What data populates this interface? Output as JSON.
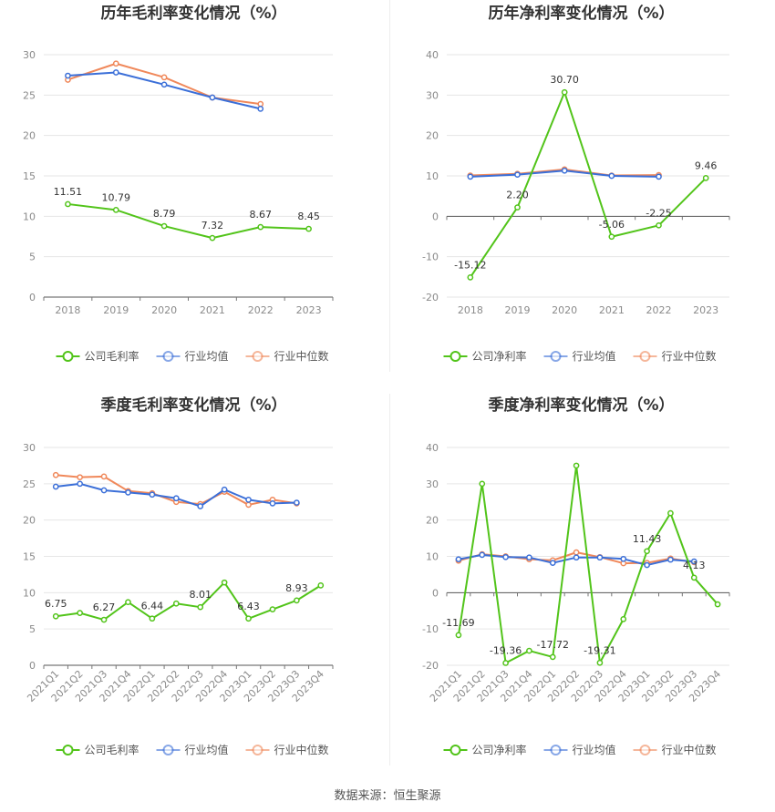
{
  "chart_data": [
    {
      "type": "line",
      "title": "历年毛利率变化情况（%）",
      "categories": [
        "2018",
        "2019",
        "2020",
        "2021",
        "2022",
        "2023"
      ],
      "ylim": [
        0,
        30
      ],
      "yticks": [
        0,
        5,
        10,
        15,
        20,
        25,
        30
      ],
      "rotate_xticks": false,
      "series": [
        {
          "name": "公司毛利率",
          "color": "#52c41a",
          "values": [
            11.51,
            10.79,
            8.79,
            7.32,
            8.67,
            8.45
          ],
          "labels": [
            "11.51",
            "10.79",
            "8.79",
            "7.32",
            "8.67",
            "8.45"
          ]
        },
        {
          "name": "行业均值",
          "color": "#3b6fd8",
          "values": [
            27.4,
            27.8,
            26.3,
            24.7,
            23.3,
            null
          ]
        },
        {
          "name": "行业中位数",
          "color": "#f0885a",
          "values": [
            26.9,
            28.9,
            27.2,
            24.7,
            23.9,
            null
          ]
        }
      ]
    },
    {
      "type": "line",
      "title": "历年净利率变化情况（%）",
      "categories": [
        "2018",
        "2019",
        "2020",
        "2021",
        "2022",
        "2023"
      ],
      "ylim": [
        -20,
        40
      ],
      "yticks": [
        -20,
        -10,
        0,
        10,
        20,
        30,
        40
      ],
      "rotate_xticks": false,
      "series": [
        {
          "name": "公司净利率",
          "color": "#52c41a",
          "values": [
            -15.12,
            2.2,
            30.7,
            -5.06,
            -2.25,
            9.46
          ],
          "labels": [
            "-15.12",
            "2.20",
            "30.70",
            "-5.06",
            "-2.25",
            "9.46"
          ]
        },
        {
          "name": "行业均值",
          "color": "#3b6fd8",
          "values": [
            9.8,
            10.3,
            11.3,
            10.0,
            9.8,
            null
          ]
        },
        {
          "name": "行业中位数",
          "color": "#f0885a",
          "values": [
            10.1,
            10.5,
            11.6,
            10.1,
            10.2,
            null
          ]
        }
      ]
    },
    {
      "type": "line",
      "title": "季度毛利率变化情况（%）",
      "categories": [
        "2021Q1",
        "2021Q2",
        "2021Q3",
        "2021Q4",
        "2022Q1",
        "2022Q2",
        "2022Q3",
        "2022Q4",
        "2023Q1",
        "2023Q2",
        "2023Q3",
        "2023Q4"
      ],
      "ylim": [
        0,
        30
      ],
      "yticks": [
        0,
        5,
        10,
        15,
        20,
        25,
        30
      ],
      "rotate_xticks": true,
      "series": [
        {
          "name": "公司毛利率",
          "color": "#52c41a",
          "values": [
            6.75,
            7.2,
            6.27,
            8.7,
            6.44,
            8.5,
            8.01,
            11.4,
            6.43,
            7.7,
            8.93,
            11.0
          ],
          "labels": [
            "6.75",
            "",
            "6.27",
            "",
            "6.44",
            "",
            "8.01",
            "",
            "6.43",
            "",
            "8.93",
            ""
          ]
        },
        {
          "name": "行业均值",
          "color": "#3b6fd8",
          "values": [
            24.6,
            25.0,
            24.1,
            23.8,
            23.5,
            23.0,
            21.9,
            24.2,
            22.8,
            22.3,
            22.4,
            null
          ]
        },
        {
          "name": "行业中位数",
          "color": "#f0885a",
          "values": [
            26.2,
            25.9,
            26.0,
            24.0,
            23.7,
            22.5,
            22.2,
            23.9,
            22.1,
            22.8,
            22.3,
            null
          ]
        }
      ]
    },
    {
      "type": "line",
      "title": "季度净利率变化情况（%）",
      "categories": [
        "2021Q1",
        "2021Q2",
        "2021Q3",
        "2021Q4",
        "2022Q1",
        "2022Q2",
        "2022Q3",
        "2022Q4",
        "2023Q1",
        "2023Q2",
        "2023Q3",
        "2023Q4"
      ],
      "ylim": [
        -20,
        40
      ],
      "yticks": [
        -20,
        -10,
        0,
        10,
        20,
        30,
        40
      ],
      "rotate_xticks": true,
      "series": [
        {
          "name": "公司净利率",
          "color": "#52c41a",
          "values": [
            -11.69,
            30.0,
            -19.36,
            -16.0,
            -17.72,
            35.0,
            -19.31,
            -7.3,
            11.43,
            21.9,
            4.13,
            -3.2
          ],
          "labels": [
            "-11.69",
            "",
            "-19.36",
            "",
            "-17.72",
            "",
            "-19.31",
            "",
            "11.43",
            "",
            "4.13",
            ""
          ]
        },
        {
          "name": "行业均值",
          "color": "#3b6fd8",
          "values": [
            9.2,
            10.4,
            9.8,
            9.7,
            8.2,
            9.7,
            9.7,
            9.3,
            7.6,
            9.1,
            8.6,
            null
          ]
        },
        {
          "name": "行业中位数",
          "color": "#f0885a",
          "values": [
            8.8,
            10.6,
            10.0,
            9.2,
            8.9,
            11.1,
            9.8,
            8.1,
            8.2,
            9.4,
            8.4,
            null
          ]
        }
      ]
    }
  ],
  "footer": {
    "source": "数据来源：恒生聚源"
  }
}
